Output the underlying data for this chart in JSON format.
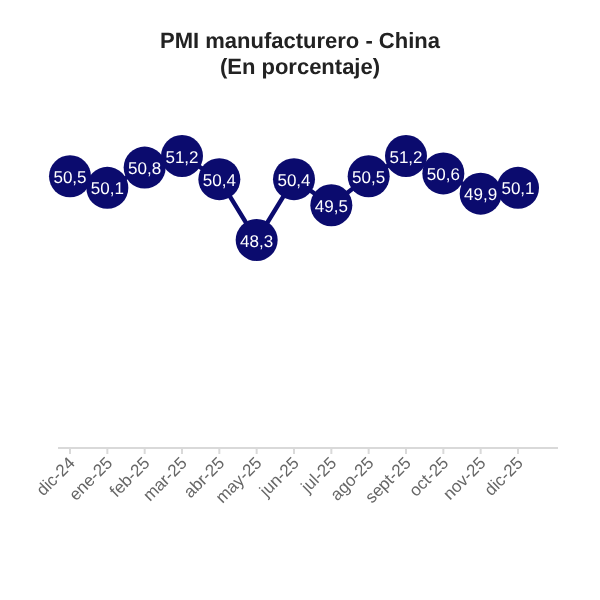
{
  "chart_data": {
    "type": "line",
    "title": "PMI manufacturero - China",
    "subtitle": "(En porcentaje)",
    "categories": [
      "dic-24",
      "ene-25",
      "feb-25",
      "mar-25",
      "abr-25",
      "may-25",
      "jun-25",
      "jul-25",
      "ago-25",
      "sept-25",
      "oct-25",
      "nov-25",
      "dic-25"
    ],
    "series": [
      {
        "color": "#0b0b6e",
        "values": [
          50.5,
          50.1,
          50.8,
          51.2,
          50.4,
          48.3,
          50.4,
          49.5,
          50.5,
          51.2,
          50.6,
          49.9,
          50.1
        ],
        "value_labels": [
          "50,5",
          "50,1",
          "50,8",
          "51,2",
          "50,4",
          "48,3",
          "50,4",
          "49,5",
          "50,5",
          "51,2",
          "50,6",
          "49,9",
          "50,1"
        ]
      }
    ],
    "marker": "circle"
  }
}
